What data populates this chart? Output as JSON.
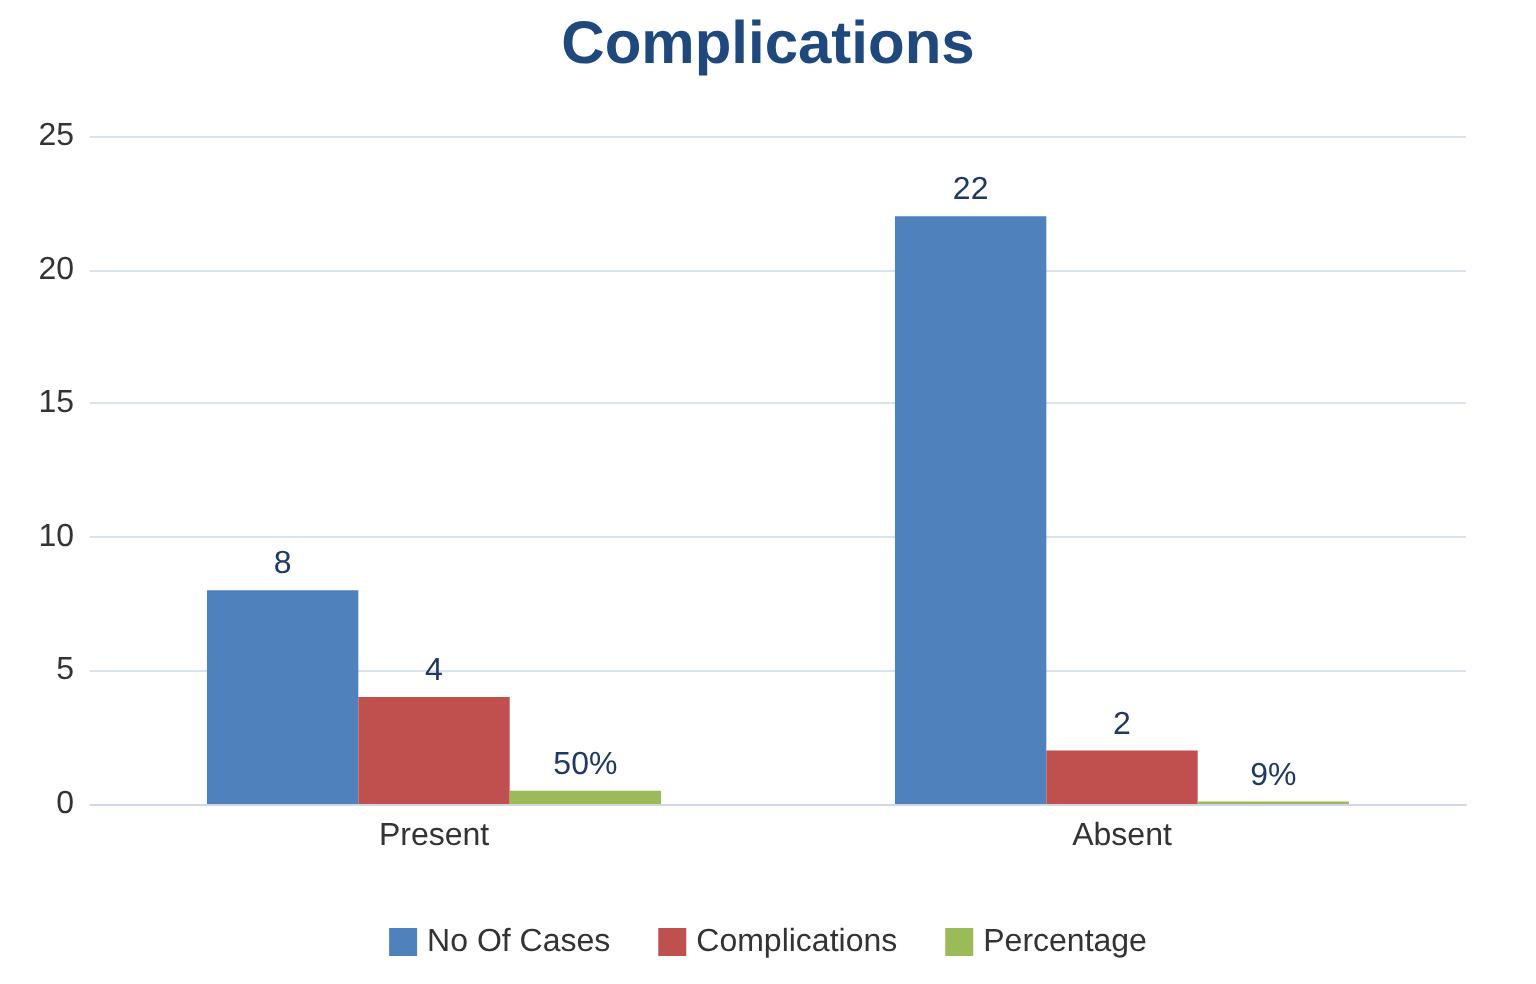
{
  "chart_data": {
    "type": "bar",
    "title": "Complications",
    "categories": [
      "Present",
      "Absent"
    ],
    "series": [
      {
        "name": "No Of Cases",
        "color": "#4f81bd",
        "values": [
          8,
          22
        ],
        "value_labels": [
          "8",
          "22"
        ]
      },
      {
        "name": "Complications",
        "color": "#c0504d",
        "values": [
          4,
          2
        ],
        "value_labels": [
          "4",
          "2"
        ]
      },
      {
        "name": "Percentage",
        "color": "#9bbb59",
        "values": [
          0.5,
          0.09
        ],
        "value_labels": [
          "50%",
          "9%"
        ]
      }
    ],
    "ylim": [
      0,
      25
    ],
    "yticks": [
      0,
      5,
      10,
      15,
      20,
      25
    ],
    "grid": "y",
    "legend": "bottom"
  }
}
